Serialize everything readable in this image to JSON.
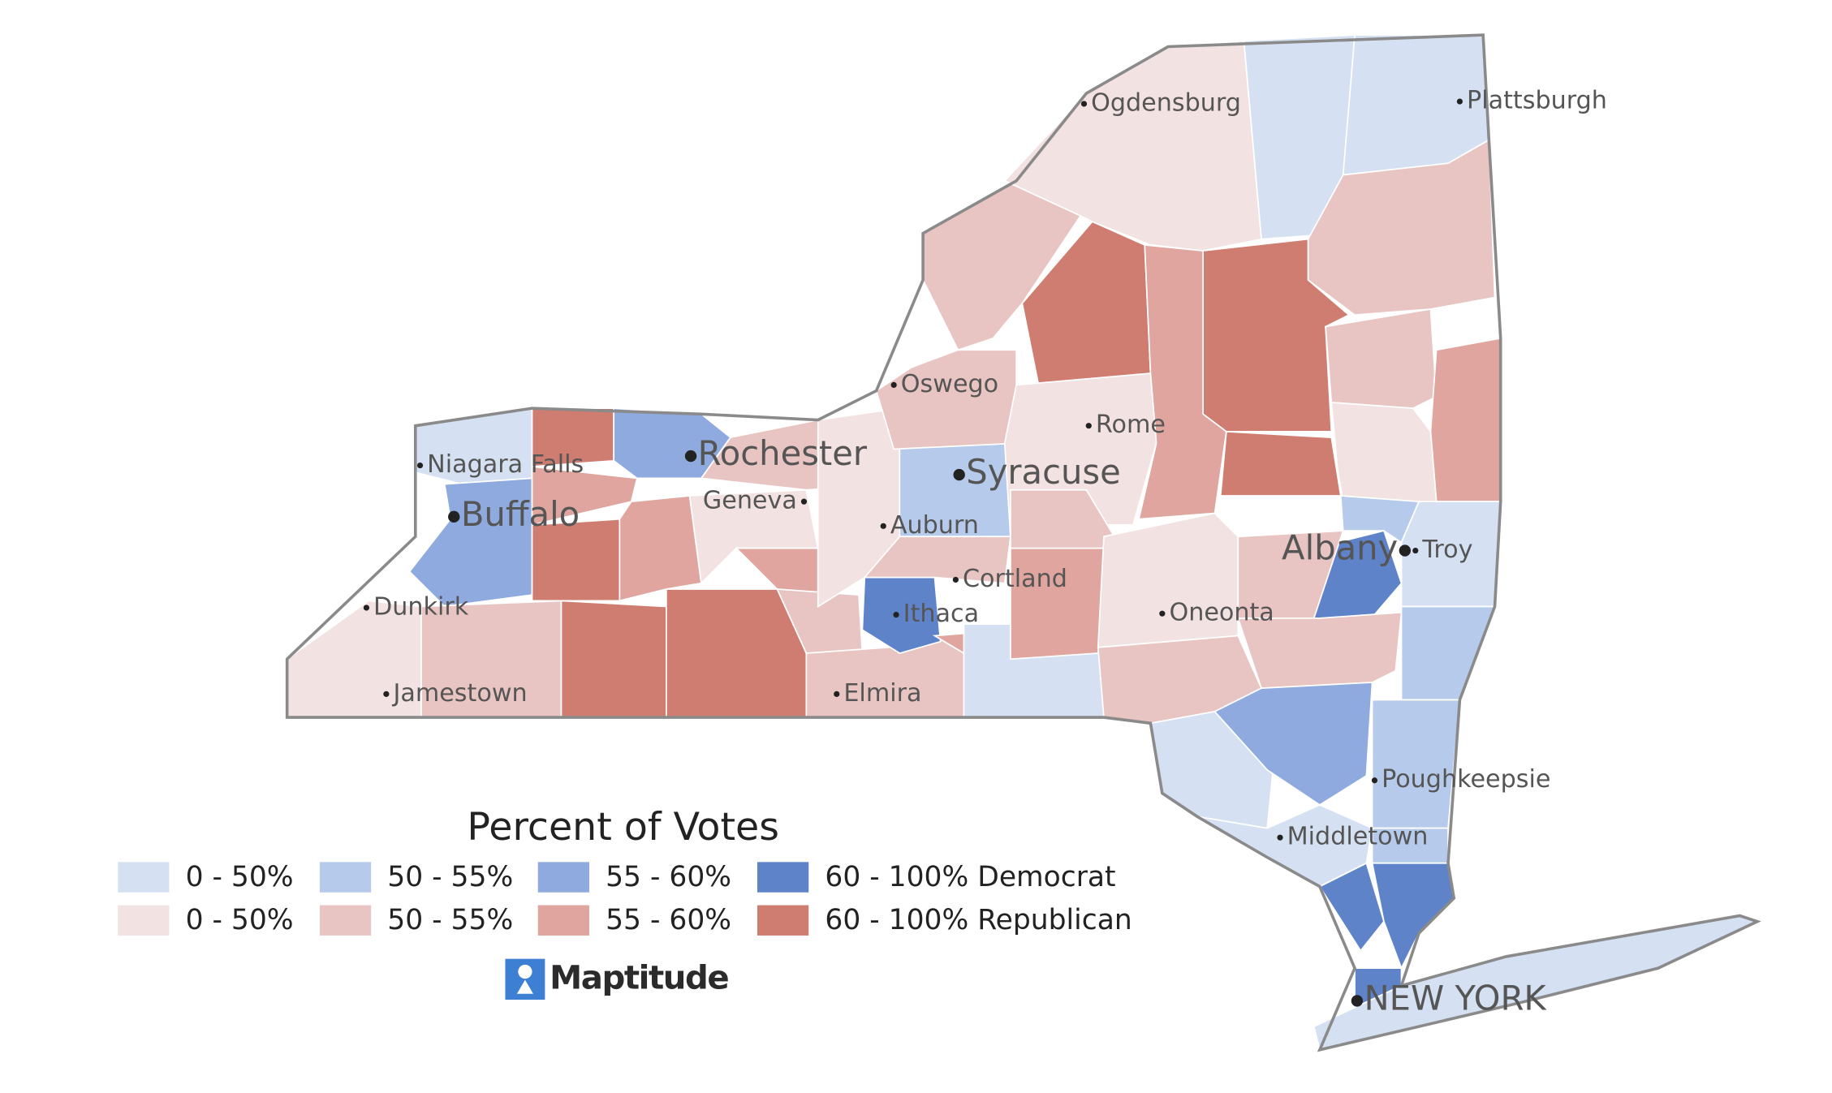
{
  "legend": {
    "title": "Percent of Votes",
    "rows": [
      {
        "items": [
          {
            "label": "0 - 50%",
            "color": "#d5e1f3"
          },
          {
            "label": "50 - 55%",
            "color": "#b6caeb"
          },
          {
            "label": "55 - 60%",
            "color": "#8eaade"
          },
          {
            "label": "60 - 100% Democrat",
            "color": "#5e83c9"
          }
        ]
      },
      {
        "items": [
          {
            "label": "0 - 50%",
            "color": "#f2e2e1"
          },
          {
            "label": "50 - 55%",
            "color": "#e8c5c2"
          },
          {
            "label": "55 - 60%",
            "color": "#dfa59e"
          },
          {
            "label": "60 - 100% Republican",
            "color": "#cf7c71"
          }
        ]
      }
    ]
  },
  "cities": [
    "Ogdensburg",
    "Plattsburgh",
    "Oswego",
    "Rome",
    "Rochester",
    "Syracuse",
    "Niagara Falls",
    "Buffalo",
    "Geneva",
    "Auburn",
    "Albany",
    "Troy",
    "Cortland",
    "Ithaca",
    "Oneonta",
    "Dunkirk",
    "Jamestown",
    "Elmira",
    "Poughkeepsie",
    "Middletown",
    "NEW YORK"
  ],
  "logo": "Maptitude"
}
